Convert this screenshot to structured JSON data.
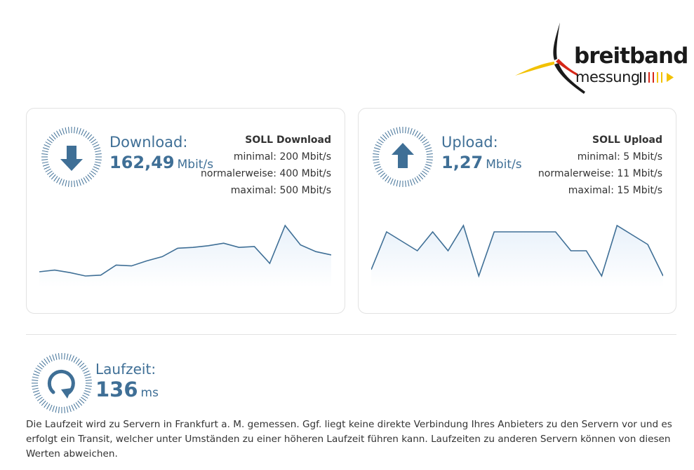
{
  "logo": {
    "word1": "breitband",
    "word2": "messung"
  },
  "download": {
    "title": "Download:",
    "value": "162,49",
    "unit": "Mbit/s",
    "soll_title": "SOLL Download",
    "soll_min": "minimal: 200 Mbit/s",
    "soll_normal": "normalerweise: 400 Mbit/s",
    "soll_max": "maximal: 500 Mbit/s",
    "icon": "arrow-down-icon",
    "series": [
      60,
      62,
      59,
      55,
      56,
      68,
      67,
      73,
      78,
      88,
      89,
      91,
      94,
      89,
      90,
      70,
      115,
      92,
      84,
      80
    ]
  },
  "upload": {
    "title": "Upload:",
    "value": "1,27",
    "unit": "Mbit/s",
    "soll_title": "SOLL Upload",
    "soll_min": "minimal: 5 Mbit/s",
    "soll_normal": "normalerweise: 11 Mbit/s",
    "soll_max": "maximal: 15 Mbit/s",
    "icon": "arrow-up-icon",
    "series": [
      0.9,
      1.5,
      1.35,
      1.2,
      1.5,
      1.2,
      1.6,
      0.8,
      1.5,
      1.5,
      1.5,
      1.5,
      1.5,
      1.2,
      1.2,
      0.8,
      1.6,
      1.45,
      1.3,
      0.8
    ]
  },
  "latency": {
    "title": "Laufzeit:",
    "value": "136",
    "unit": "ms",
    "icon": "refresh-icon"
  },
  "note": "Die Laufzeit wird zu Servern in Frankfurt a. M. gemessen. Ggf. liegt keine direkte Verbindung Ihres Anbieters zu den Servern vor und es erfolgt ein Transit, welcher unter Umständen zu einer höheren Laufzeit führen kann. Laufzeiten zu anderen Servern können von diesen Werten abweichen.",
  "colors": {
    "accent": "#3f6f96",
    "chart_fill": "#e8f1fa",
    "card_border": "#e2e2e2",
    "logo_black": "#1a1a1a",
    "logo_red": "#d62718",
    "logo_gold": "#f2c100"
  }
}
